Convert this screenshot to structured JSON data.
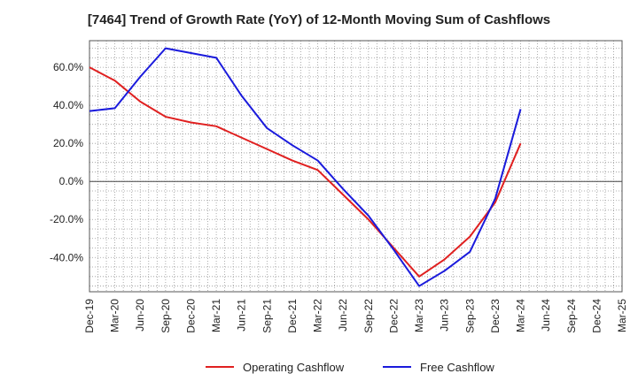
{
  "chart_data": {
    "type": "line",
    "title": "[7464]  Trend of Growth Rate (YoY) of 12-Month Moving Sum of Cashflows",
    "xlabel": "",
    "ylabel": "",
    "categories": [
      "Dec-19",
      "Mar-20",
      "Jun-20",
      "Sep-20",
      "Dec-20",
      "Mar-21",
      "Jun-21",
      "Sep-21",
      "Dec-21",
      "Mar-22",
      "Jun-22",
      "Sep-22",
      "Dec-22",
      "Mar-23",
      "Jun-23",
      "Sep-23",
      "Dec-23",
      "Mar-24",
      "Jun-24",
      "Sep-24",
      "Dec-24",
      "Mar-25"
    ],
    "ylim": [
      -58,
      74
    ],
    "yticks": [
      -40,
      -20,
      0,
      20,
      40,
      60
    ],
    "ytick_labels": [
      "-40.0%",
      "-20.0%",
      "0.0%",
      "20.0%",
      "40.0%",
      "60.0%"
    ],
    "grid": true,
    "legend_position": "bottom",
    "series": [
      {
        "name": "Operating Cashflow",
        "color": "#e02020",
        "values": [
          60,
          53,
          42,
          34,
          31,
          29,
          23,
          17,
          11,
          6,
          -7,
          -20,
          -35,
          -50,
          -41,
          -29,
          -11,
          20,
          null,
          null,
          null,
          null
        ]
      },
      {
        "name": "Free Cashflow",
        "color": "#1a1adc",
        "values": [
          37,
          38.5,
          55,
          70,
          67.5,
          65,
          45,
          28,
          19,
          11,
          -4,
          -18,
          -36,
          -55,
          -47,
          -37,
          -9,
          38,
          null,
          null,
          null,
          null
        ]
      }
    ]
  }
}
